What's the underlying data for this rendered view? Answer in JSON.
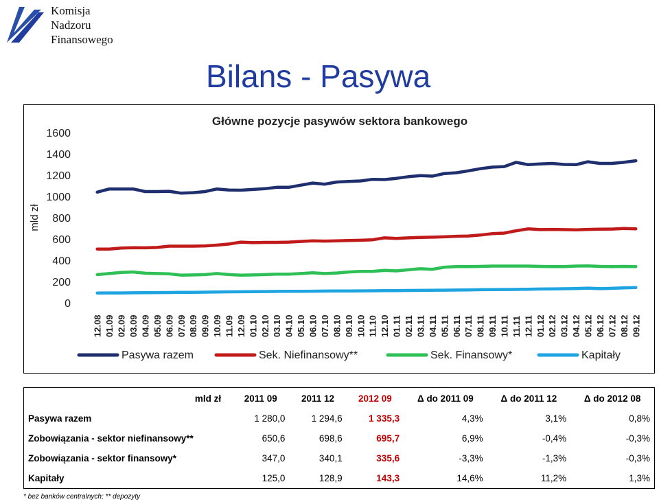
{
  "logo": {
    "lines": [
      "Komisja",
      "Nadzoru",
      "Finansowego"
    ]
  },
  "page_title": "Bilans - Pasywa",
  "colors": {
    "title": "#1f3c9e",
    "highlight": "#c00000"
  },
  "chart_data": {
    "type": "line",
    "title": "Główne pozycje pasywów sektora bankowego",
    "ylabel": "mld zł",
    "xlabel": "",
    "ylim": [
      0,
      1600
    ],
    "yticks": [
      0,
      200,
      400,
      600,
      800,
      1000,
      1200,
      1400,
      1600
    ],
    "grid": false,
    "legend_position": "bottom",
    "x": [
      "12.08",
      "01.09",
      "02.09",
      "03.09",
      "04.09",
      "05.09",
      "06.09",
      "07.09",
      "08.09",
      "09.09",
      "10.09",
      "11.09",
      "12.09",
      "01.10",
      "02.10",
      "03.10",
      "04.10",
      "05.10",
      "06.10",
      "07.10",
      "08.10",
      "09.10",
      "10.10",
      "11.10",
      "12.10",
      "01.11",
      "02.11",
      "03.11",
      "04.11",
      "05.11",
      "06.11",
      "07.11",
      "08.11",
      "09.11",
      "10.11",
      "11.11",
      "12.11",
      "01.12",
      "02.12",
      "03.12",
      "04.12",
      "05.12",
      "06.12",
      "07.12",
      "08.12",
      "09.12"
    ],
    "series": [
      {
        "name": "Pasywa razem",
        "color": "#1f2f6e",
        "values": [
          1040,
          1070,
          1070,
          1070,
          1045,
          1045,
          1048,
          1030,
          1035,
          1045,
          1070,
          1060,
          1058,
          1065,
          1072,
          1085,
          1085,
          1105,
          1125,
          1115,
          1135,
          1140,
          1145,
          1160,
          1158,
          1170,
          1185,
          1195,
          1190,
          1215,
          1222,
          1240,
          1260,
          1275,
          1280,
          1320,
          1298,
          1305,
          1310,
          1300,
          1298,
          1325,
          1310,
          1310,
          1320,
          1335
        ]
      },
      {
        "name": "Sek. Niefinansowy**",
        "color": "#c01a1a",
        "values": [
          505,
          505,
          515,
          518,
          517,
          520,
          532,
          532,
          532,
          535,
          542,
          552,
          570,
          565,
          568,
          568,
          570,
          577,
          582,
          580,
          582,
          585,
          588,
          592,
          610,
          605,
          610,
          615,
          617,
          620,
          625,
          628,
          637,
          650,
          655,
          677,
          695,
          688,
          690,
          688,
          685,
          690,
          692,
          693,
          698,
          695
        ]
      },
      {
        "name": "Sek. Finansowy*",
        "color": "#2ec057",
        "values": [
          265,
          275,
          285,
          290,
          278,
          275,
          272,
          260,
          262,
          265,
          275,
          265,
          260,
          262,
          265,
          270,
          270,
          275,
          282,
          275,
          280,
          290,
          295,
          295,
          305,
          300,
          310,
          320,
          315,
          335,
          340,
          340,
          342,
          345,
          345,
          345,
          345,
          342,
          340,
          340,
          345,
          347,
          342,
          340,
          342,
          340
        ]
      },
      {
        "name": "Kapitały",
        "color": "#1ea4e0",
        "values": [
          92,
          93,
          93,
          94,
          95,
          96,
          97,
          98,
          99,
          100,
          102,
          103,
          104,
          105,
          106,
          107,
          108,
          108,
          109,
          110,
          111,
          111,
          112,
          113,
          114,
          115,
          116,
          117,
          118,
          119,
          120,
          121,
          123,
          124,
          125,
          126,
          128,
          130,
          131,
          132,
          134,
          138,
          133,
          136,
          140,
          143
        ]
      }
    ]
  },
  "table": {
    "headers": [
      "mld zł",
      "2011 09",
      "2011 12",
      "2012 09",
      "Δ do 2011 09",
      "Δ do 2011 12",
      "Δ do 2012 08"
    ],
    "rows": [
      {
        "label": "Pasywa razem",
        "values": [
          "1 280,0",
          "1 294,6",
          "1 335,3",
          "4,3%",
          "3,1%",
          "0,8%"
        ]
      },
      {
        "label": "Zobowiązania - sektor niefinansowy**",
        "values": [
          "650,6",
          "698,6",
          "695,7",
          "6,9%",
          "-0,4%",
          "-0,3%"
        ]
      },
      {
        "label": "Zobowiązania - sektor finansowy*",
        "values": [
          "347,0",
          "340,1",
          "335,6",
          "-3,3%",
          "-1,3%",
          "-0,3%"
        ]
      },
      {
        "label": "Kapitały",
        "values": [
          "125,0",
          "128,9",
          "143,3",
          "14,6%",
          "11,2%",
          "1,3%"
        ]
      }
    ]
  },
  "footnote": "* bez banków centralnych;  ** depozyty"
}
